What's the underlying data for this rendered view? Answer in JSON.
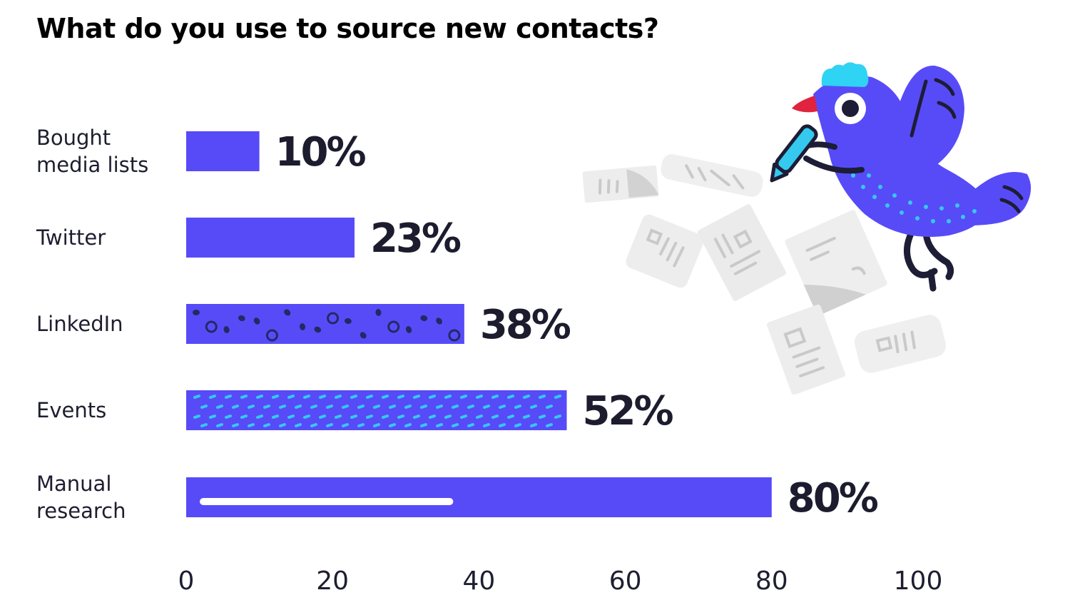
{
  "chart_data": {
    "type": "bar",
    "orientation": "horizontal",
    "title": "What do you use to source new contacts?",
    "categories": [
      [
        "Bought",
        "media lists"
      ],
      [
        "Twitter"
      ],
      [
        "LinkedIn"
      ],
      [
        "Events"
      ],
      [
        "Manual",
        "research"
      ]
    ],
    "values": [
      10,
      23,
      38,
      52,
      80
    ],
    "value_labels": [
      "10%",
      "23%",
      "38%",
      "52%",
      "80%"
    ],
    "xlim": [
      0,
      100
    ],
    "xticks": [
      0,
      20,
      40,
      60,
      80,
      100
    ],
    "grid": false,
    "bar_color": "#574bf8",
    "bar_patterns": [
      "none",
      "none",
      "dark-dots",
      "cyan-dashes",
      "white-stripe"
    ],
    "dot_color": "#222a66",
    "dash_color": "#35c9f0",
    "label_color": "#1c1c2e"
  }
}
